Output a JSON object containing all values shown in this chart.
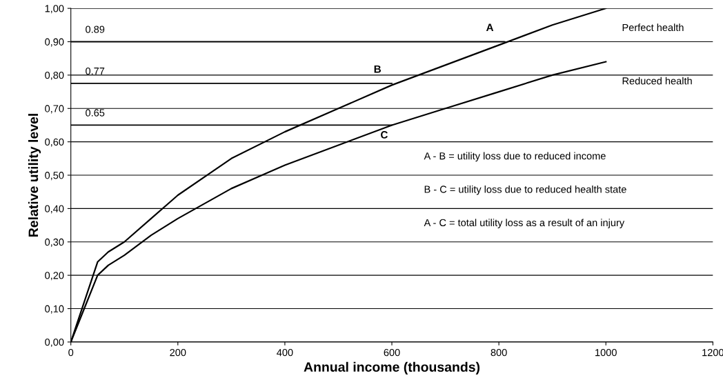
{
  "chart_data": {
    "type": "line",
    "xlabel": "Annual income (thousands)",
    "ylabel": "Relative utility level",
    "xlim": [
      0,
      1200
    ],
    "xticks": [
      0,
      200,
      400,
      600,
      800,
      1000,
      1200
    ],
    "ylim": [
      0,
      1
    ],
    "yticks": [
      {
        "value": 0,
        "label": "0,00"
      },
      {
        "value": 0.1,
        "label": "0,10"
      },
      {
        "value": 0.2,
        "label": "0,20"
      },
      {
        "value": 0.3,
        "label": "0,30"
      },
      {
        "value": 0.4,
        "label": "0,40"
      },
      {
        "value": 0.5,
        "label": "0,50"
      },
      {
        "value": 0.6,
        "label": "0,60"
      },
      {
        "value": 0.7,
        "label": "0,70"
      },
      {
        "value": 0.8,
        "label": "0,80"
      },
      {
        "value": 0.9,
        "label": "0,90"
      },
      {
        "value": 1,
        "label": "1,00"
      }
    ],
    "grid": "y",
    "legend": false,
    "marker": "none",
    "line_style": "solid",
    "series": [
      {
        "name": "Perfect health",
        "color": "#000000",
        "x": [
          0,
          25,
          50,
          70,
          100,
          150,
          200,
          300,
          400,
          500,
          600,
          700,
          800,
          900,
          1000
        ],
        "values": [
          0,
          0.12,
          0.24,
          0.27,
          0.3,
          0.37,
          0.44,
          0.55,
          0.63,
          0.7,
          0.77,
          0.83,
          0.89,
          0.95,
          1.0
        ]
      },
      {
        "name": "Reduced health",
        "color": "#000000",
        "x": [
          0,
          25,
          50,
          70,
          100,
          150,
          200,
          300,
          400,
          500,
          600,
          700,
          800,
          900,
          1000
        ],
        "values": [
          0,
          0.1,
          0.2,
          0.23,
          0.26,
          0.32,
          0.37,
          0.46,
          0.53,
          0.59,
          0.65,
          0.7,
          0.75,
          0.8,
          0.84
        ]
      },
      {
        "color": "#000000",
        "x": [
          0,
          810
        ],
        "values": [
          0.9,
          0.9
        ]
      },
      {
        "color": "#000000",
        "x": [
          0,
          600
        ],
        "values": [
          0.775,
          0.775
        ]
      },
      {
        "color": "#000000",
        "x": [
          0,
          600
        ],
        "values": [
          0.65,
          0.65
        ]
      }
    ],
    "annotations": [
      {
        "text": "0.89",
        "x": 0,
        "y": 0.9
      },
      {
        "text": "0.77",
        "x": 0,
        "y": 0.775
      },
      {
        "text": "0.65",
        "x": 0,
        "y": 0.65
      },
      {
        "text": "A",
        "x": 810,
        "y": 0.9
      },
      {
        "text": "B",
        "x": 600,
        "y": 0.775
      },
      {
        "text": "C",
        "x": 600,
        "y": 0.65
      },
      "A - B = utility loss due to reduced income",
      "B - C = utility loss due to reduced health state",
      "A - C = total utility loss as a result of an injury"
    ]
  }
}
